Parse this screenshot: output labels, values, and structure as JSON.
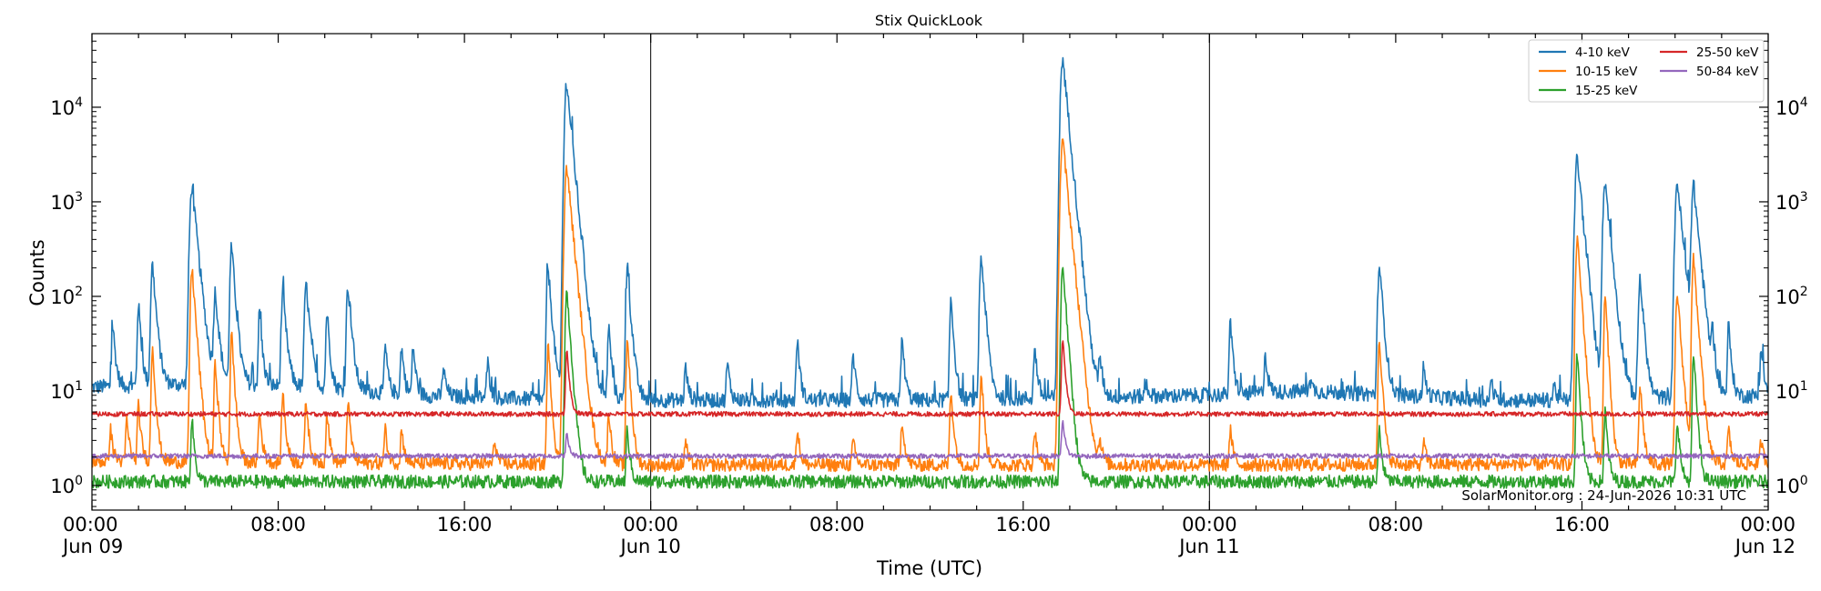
{
  "chart_data": {
    "type": "line",
    "title": "Stix QuickLook",
    "xlabel": "Time (UTC)",
    "ylabel": "Counts",
    "y_scale": "log",
    "ylim": [
      0.55,
      60000
    ],
    "y_ticks": [
      {
        "value": 1,
        "base": "10",
        "exp": "0"
      },
      {
        "value": 10,
        "base": "10",
        "exp": "1"
      },
      {
        "value": 100,
        "base": "10",
        "exp": "2"
      },
      {
        "value": 1000,
        "base": "10",
        "exp": "3"
      },
      {
        "value": 10000,
        "base": "10",
        "exp": "4"
      }
    ],
    "x_range_hours": [
      0,
      72
    ],
    "x_ticks": [
      {
        "hour": 0,
        "time": "00:00",
        "date": "Jun 09"
      },
      {
        "hour": 8,
        "time": "08:00",
        "date": ""
      },
      {
        "hour": 16,
        "time": "16:00",
        "date": ""
      },
      {
        "hour": 24,
        "time": "00:00",
        "date": "Jun 10"
      },
      {
        "hour": 32,
        "time": "08:00",
        "date": ""
      },
      {
        "hour": 40,
        "time": "16:00",
        "date": ""
      },
      {
        "hour": 48,
        "time": "00:00",
        "date": "Jun 11"
      },
      {
        "hour": 56,
        "time": "08:00",
        "date": ""
      },
      {
        "hour": 64,
        "time": "16:00",
        "date": ""
      },
      {
        "hour": 72,
        "time": "00:00",
        "date": "Jun 12"
      }
    ],
    "day_boundaries_hours": [
      24,
      48
    ],
    "legend_position": "top-right",
    "annotation": "SolarMonitor.org : 24-Jun-2026 10:31 UTC",
    "series": [
      {
        "name": "4-10 keV",
        "color": "#1f77b4",
        "baseline": [
          [
            0,
            11
          ],
          [
            5,
            12
          ],
          [
            9,
            11
          ],
          [
            14,
            9
          ],
          [
            20,
            8
          ],
          [
            24,
            8
          ],
          [
            36,
            8
          ],
          [
            48,
            9
          ],
          [
            52,
            10
          ],
          [
            60,
            8
          ],
          [
            64,
            8
          ],
          [
            72,
            9
          ]
        ],
        "peaks": [
          [
            0.9,
            50
          ],
          [
            2.0,
            85
          ],
          [
            2.6,
            220
          ],
          [
            4.3,
            1450
          ],
          [
            5.3,
            110
          ],
          [
            6.0,
            330
          ],
          [
            7.2,
            70
          ],
          [
            8.2,
            110
          ],
          [
            9.2,
            140
          ],
          [
            10.1,
            70
          ],
          [
            11.0,
            130
          ],
          [
            12.6,
            30
          ],
          [
            13.3,
            30
          ],
          [
            13.8,
            30
          ],
          [
            15.1,
            18
          ],
          [
            17.0,
            20
          ],
          [
            19.6,
            200
          ],
          [
            20.4,
            17500
          ],
          [
            22.2,
            48
          ],
          [
            23.0,
            190
          ],
          [
            25.5,
            18
          ],
          [
            27.3,
            20
          ],
          [
            30.3,
            35
          ],
          [
            32.7,
            25
          ],
          [
            34.8,
            35
          ],
          [
            36.9,
            100
          ],
          [
            38.2,
            270
          ],
          [
            40.5,
            30
          ],
          [
            41.7,
            33500
          ],
          [
            43.3,
            22
          ],
          [
            45.3,
            12
          ],
          [
            48.9,
            52
          ],
          [
            50.4,
            25
          ],
          [
            52.3,
            14
          ],
          [
            55.3,
            220
          ],
          [
            57.2,
            18
          ],
          [
            60.1,
            12
          ],
          [
            62.8,
            12
          ],
          [
            63.8,
            2900
          ],
          [
            65.0,
            1650
          ],
          [
            66.5,
            160
          ],
          [
            68.1,
            1650
          ],
          [
            68.8,
            1500
          ],
          [
            69.6,
            40
          ],
          [
            70.3,
            50
          ],
          [
            71.7,
            30
          ]
        ]
      },
      {
        "name": "10-15 keV",
        "color": "#ff7f0e",
        "baseline": [
          [
            0,
            1.8
          ],
          [
            24,
            1.65
          ],
          [
            48,
            1.65
          ],
          [
            72,
            1.7
          ]
        ],
        "peaks": [
          [
            0.8,
            4
          ],
          [
            1.5,
            5
          ],
          [
            2.0,
            7
          ],
          [
            2.6,
            30
          ],
          [
            4.3,
            200
          ],
          [
            5.3,
            20
          ],
          [
            6.0,
            40
          ],
          [
            7.2,
            6
          ],
          [
            8.2,
            10
          ],
          [
            9.2,
            8
          ],
          [
            10.1,
            6
          ],
          [
            11.0,
            8
          ],
          [
            12.6,
            4
          ],
          [
            13.3,
            4
          ],
          [
            17.3,
            3
          ],
          [
            19.6,
            30
          ],
          [
            20.4,
            2300
          ],
          [
            22.2,
            6
          ],
          [
            23.0,
            38
          ],
          [
            25.5,
            3
          ],
          [
            30.3,
            4
          ],
          [
            32.7,
            3
          ],
          [
            34.8,
            5
          ],
          [
            36.9,
            10
          ],
          [
            38.2,
            15
          ],
          [
            40.5,
            4
          ],
          [
            41.7,
            4500
          ],
          [
            43.3,
            3
          ],
          [
            48.9,
            4
          ],
          [
            55.3,
            38
          ],
          [
            57.2,
            3
          ],
          [
            63.8,
            420
          ],
          [
            65.0,
            100
          ],
          [
            66.5,
            12
          ],
          [
            68.1,
            110
          ],
          [
            68.8,
            250
          ],
          [
            70.3,
            4
          ],
          [
            71.7,
            3
          ]
        ]
      },
      {
        "name": "15-25 keV",
        "color": "#2ca02c",
        "baseline": [
          [
            0,
            1.1
          ],
          [
            72,
            1.1
          ]
        ],
        "peaks": [
          [
            4.3,
            5
          ],
          [
            20.4,
            115
          ],
          [
            23.0,
            4
          ],
          [
            41.7,
            220
          ],
          [
            55.3,
            4
          ],
          [
            63.8,
            25
          ],
          [
            65.0,
            6
          ],
          [
            68.1,
            5
          ],
          [
            68.8,
            25
          ]
        ]
      },
      {
        "name": "25-50 keV",
        "color": "#d62728",
        "baseline": [
          [
            0,
            5.7
          ],
          [
            72,
            5.7
          ]
        ],
        "peaks": [
          [
            20.4,
            28
          ],
          [
            41.7,
            36
          ]
        ]
      },
      {
        "name": "50-84 keV",
        "color": "#9467bd",
        "baseline": [
          [
            0,
            2.05
          ],
          [
            72,
            2.05
          ]
        ],
        "peaks": [
          [
            20.4,
            3.5
          ],
          [
            41.7,
            5
          ]
        ]
      }
    ]
  }
}
